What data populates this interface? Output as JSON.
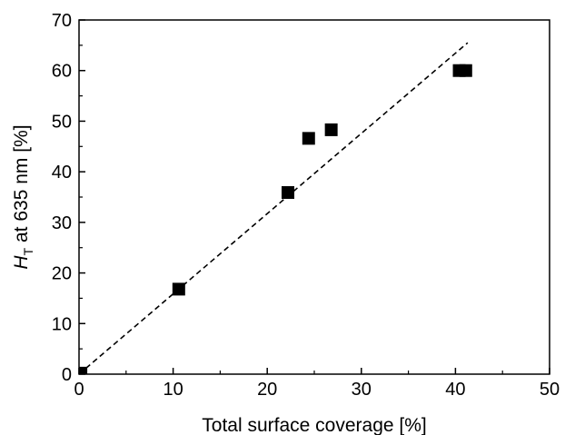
{
  "chart_data": {
    "type": "scatter",
    "title": "",
    "xlabel": "Total surface coverage [%]",
    "ylabel": {
      "symbol": "H",
      "subscript": "T",
      "rest": " at 635 nm [%]"
    },
    "xlim": [
      0,
      50
    ],
    "ylim": [
      0,
      70
    ],
    "x_ticks": [
      "0",
      "10",
      "20",
      "30",
      "40",
      "50"
    ],
    "y_ticks": [
      "0",
      "10",
      "20",
      "30",
      "40",
      "50",
      "60",
      "70"
    ],
    "grid": false,
    "legend": "none",
    "series": [
      {
        "marker": "filled-square",
        "color": "#000000",
        "points": [
          {
            "x": 0.2,
            "y": 0.2
          },
          {
            "x": 10.6,
            "y": 16.8
          },
          {
            "x": 22.2,
            "y": 35.9
          },
          {
            "x": 24.4,
            "y": 46.6
          },
          {
            "x": 26.8,
            "y": 48.3
          },
          {
            "x": 40.4,
            "y": 60.0
          },
          {
            "x": 41.1,
            "y": 60.0
          }
        ]
      }
    ],
    "fit_line": {
      "style": "dashed",
      "color": "#000000",
      "x": [
        0,
        41.3
      ],
      "y": [
        0,
        65.5
      ]
    }
  }
}
